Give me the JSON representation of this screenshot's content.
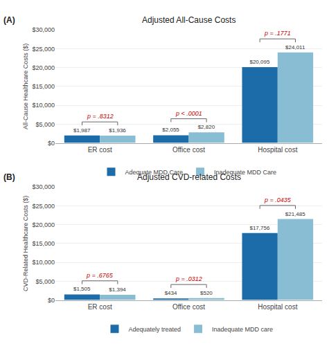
{
  "chart_data": [
    {
      "type": "bar",
      "title": "Adjusted All-Cause Costs",
      "panel_label": "(A)",
      "ylabel": "All-Cause Healthcare Costs ($)",
      "categories": [
        "ER cost",
        "Office cost",
        "Hospital cost"
      ],
      "series": [
        {
          "name": "Adequate MDD Care",
          "color": "#1b6ca8",
          "values": [
            1987,
            2055,
            20095
          ],
          "value_labels": [
            "$1,987",
            "$2,055",
            "$20,095"
          ]
        },
        {
          "name": "Inadequate MDD Care",
          "color": "#89bdd3",
          "values": [
            1936,
            2820,
            24011
          ],
          "value_labels": [
            "$1,936",
            "$2,820",
            "$24,011"
          ]
        }
      ],
      "annotations": [
        {
          "category": "ER cost",
          "text": "p = .8312",
          "color": "#cc0000"
        },
        {
          "category": "Office cost",
          "text": "p < .0001",
          "color": "#cc0000"
        },
        {
          "category": "Hospital cost",
          "text": "p = .1771",
          "color": "#cc0000"
        }
      ],
      "ylim": [
        0,
        30000
      ],
      "yticks": [
        {
          "value": 0,
          "label": "$0"
        },
        {
          "value": 5000,
          "label": "$5,000"
        },
        {
          "value": 10000,
          "label": "$10,000"
        },
        {
          "value": 15000,
          "label": "$15,000"
        },
        {
          "value": 20000,
          "label": "$20,000"
        },
        {
          "value": 25000,
          "label": "$25,000"
        },
        {
          "value": 30000,
          "label": "$30,000"
        }
      ],
      "grid": true,
      "data_labels": true,
      "legend": "bottom"
    },
    {
      "type": "bar",
      "title": "Adjusted CVD-related Costs",
      "panel_label": "(B)",
      "ylabel": "CVD-Related Healthcare Costs ($)",
      "categories": [
        "ER cost",
        "Office cost",
        "Hospital cost"
      ],
      "series": [
        {
          "name": "Adequately treated",
          "color": "#1b6ca8",
          "values": [
            1505,
            434,
            17756
          ],
          "value_labels": [
            "$1,505",
            "$434",
            "$17,756"
          ]
        },
        {
          "name": "Inadequate MDD care",
          "color": "#89bdd3",
          "values": [
            1394,
            520,
            21485
          ],
          "value_labels": [
            "$1,394",
            "$520",
            "$21,485"
          ]
        }
      ],
      "annotations": [
        {
          "category": "ER cost",
          "text": "p = .6765",
          "color": "#cc0000"
        },
        {
          "category": "Office cost",
          "text": "p = .0312",
          "color": "#cc0000"
        },
        {
          "category": "Hospital cost",
          "text": "p = .0435",
          "color": "#cc0000"
        }
      ],
      "ylim": [
        0,
        30000
      ],
      "yticks": [
        {
          "value": 0,
          "label": "$0"
        },
        {
          "value": 5000,
          "label": "$5,000"
        },
        {
          "value": 10000,
          "label": "$10,000"
        },
        {
          "value": 15000,
          "label": "$15,000"
        },
        {
          "value": 20000,
          "label": "$20,000"
        },
        {
          "value": 25000,
          "label": "$25,000"
        },
        {
          "value": 30000,
          "label": "$30,000"
        }
      ],
      "grid": true,
      "data_labels": true,
      "legend": "bottom"
    }
  ]
}
